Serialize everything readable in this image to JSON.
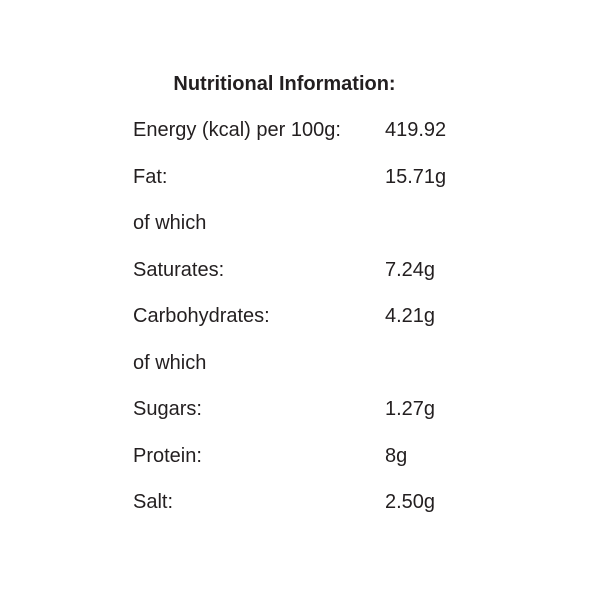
{
  "panel": {
    "title": "Nutritional Information:",
    "rows": [
      {
        "label": "Energy (kcal) per 100g:",
        "value": "419.92"
      },
      {
        "label": "Fat:",
        "value": "15.71g"
      },
      {
        "label": "of which",
        "value": ""
      },
      {
        "label": "Saturates:",
        "value": "7.24g"
      },
      {
        "label": "Carbohydrates:",
        "value": "4.21g"
      },
      {
        "label": "of which",
        "value": ""
      },
      {
        "label": "Sugars:",
        "value": "1.27g"
      },
      {
        "label": "Protein:",
        "value": "8g"
      },
      {
        "label": "Salt:",
        "value": "2.50g"
      }
    ],
    "colors": {
      "text": "#231f20",
      "background": "#ffffff"
    }
  }
}
